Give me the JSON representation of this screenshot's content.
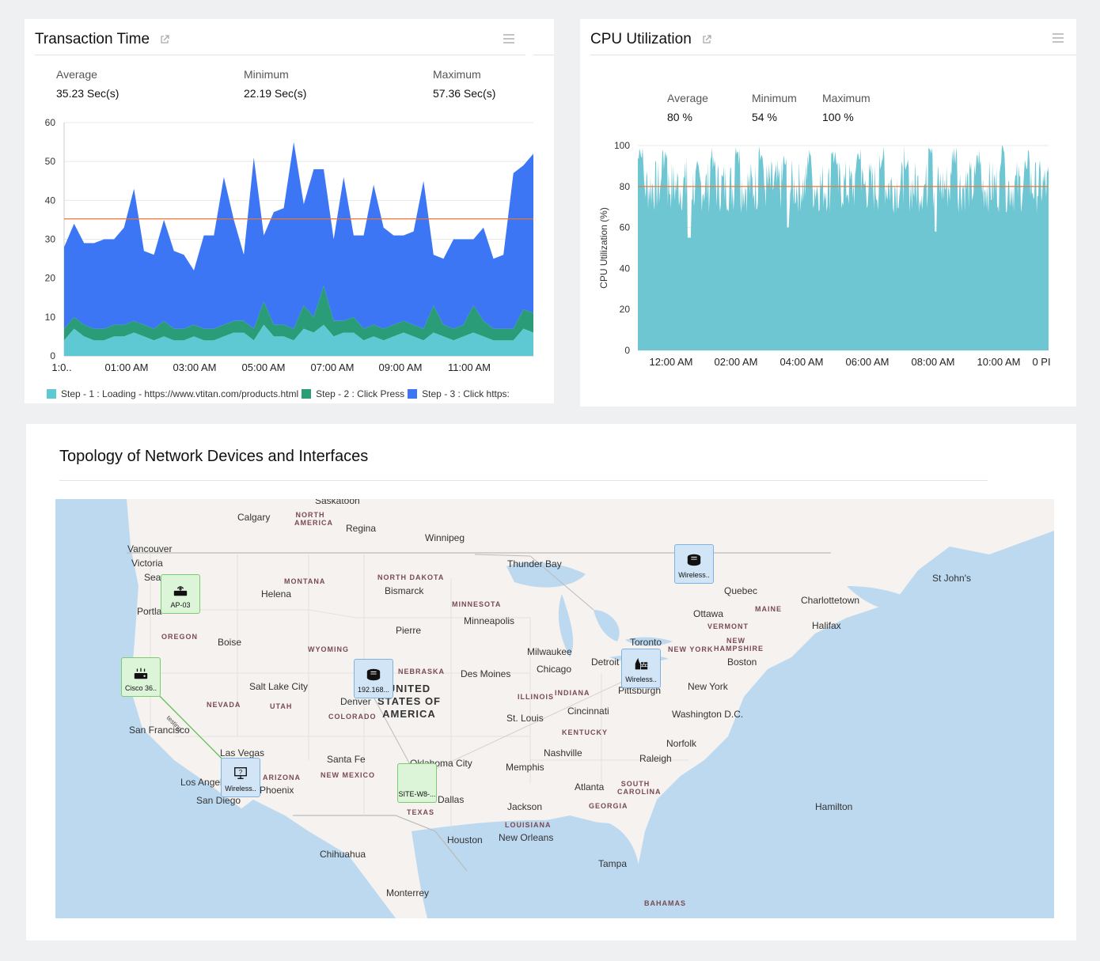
{
  "transaction": {
    "title": "Transaction Time",
    "stats": [
      {
        "label": "Average",
        "value": "35.23 Sec(s)"
      },
      {
        "label": "Minimum",
        "value": "22.19 Sec(s)"
      },
      {
        "label": "Maximum",
        "value": "57.36 Sec(s)"
      }
    ],
    "legend": [
      {
        "label": "Step - 1 : Loading - https://www.vtitan.com/products.html",
        "color": "#5ec8d3"
      },
      {
        "label": "Step - 2 : Click Press",
        "color": "#2a9d78"
      },
      {
        "label": "Step - 3 : Click https:",
        "color": "#3d76f5"
      }
    ]
  },
  "cpu": {
    "title": "CPU Utilization",
    "stats": [
      {
        "label": "Average",
        "value": "80 %"
      },
      {
        "label": "Minimum",
        "value": "54 %"
      },
      {
        "label": "Maximum",
        "value": "100 %"
      }
    ]
  },
  "chart_data": [
    {
      "type": "area",
      "stacked": true,
      "ylim": [
        0,
        60
      ],
      "yticks": [
        "0",
        "10",
        "20",
        "30",
        "40",
        "50",
        "60"
      ],
      "xticks": [
        "1:0..",
        "01:00 AM",
        "03:00 AM",
        "05:00 AM",
        "07:00 AM",
        "09:00 AM",
        "11:00 AM"
      ],
      "reference_line": 35.23,
      "reference_color": "#f07030",
      "series": [
        {
          "name": "Step - 1 : Loading - https://www.vtitan.com/products.html",
          "color": "#5ec8d3",
          "values": [
            4,
            7,
            5,
            4,
            4,
            5,
            5,
            6,
            5,
            4,
            5,
            4,
            4,
            5,
            4,
            4,
            5,
            6,
            6,
            4,
            8,
            5,
            5,
            4,
            7,
            6,
            8,
            5,
            6,
            6,
            4,
            5,
            4,
            5,
            6,
            5,
            4,
            6,
            5,
            4,
            5,
            6,
            5,
            4,
            4,
            4,
            7,
            6
          ]
        },
        {
          "name": "Step - 2 : Click Press",
          "color": "#2a9d78",
          "values": [
            3,
            3,
            3,
            3,
            3,
            3,
            3,
            3,
            3,
            3,
            4,
            3,
            3,
            3,
            3,
            3,
            3,
            3,
            3,
            3,
            6,
            3,
            3,
            3,
            6,
            4,
            10,
            4,
            3,
            4,
            3,
            3,
            3,
            3,
            3,
            3,
            3,
            7,
            3,
            3,
            3,
            7,
            4,
            3,
            3,
            3,
            5,
            5
          ]
        },
        {
          "name": "Step - 3 : Click https:",
          "color": "#3d76f5",
          "values": [
            21,
            24,
            21,
            22,
            23,
            22,
            25,
            34,
            19,
            19,
            26,
            20,
            19,
            14,
            24,
            24,
            38,
            26,
            17,
            44,
            17,
            29,
            30,
            48,
            26,
            38,
            30,
            21,
            37,
            21,
            24,
            36,
            26,
            23,
            22,
            24,
            38,
            13,
            17,
            23,
            22,
            17,
            24,
            18,
            19,
            40,
            37,
            41
          ]
        }
      ]
    },
    {
      "type": "area",
      "ylabel": "CPU Utilization (%)",
      "ylim": [
        0,
        100
      ],
      "yticks": [
        "0",
        "20",
        "40",
        "60",
        "80",
        "100"
      ],
      "xticks": [
        "12:00 AM",
        "02:00 AM",
        "04:00 AM",
        "06:00 AM",
        "08:00 AM",
        "10:00 AM",
        "0 PI"
      ],
      "reference_line": 80,
      "reference_color": "#f07030",
      "series": [
        {
          "name": "CPU Utilization (%)",
          "color": "#6ec6d2",
          "peaks": 17,
          "peak_value": 100,
          "base_value": 67,
          "dip_value": 55
        }
      ]
    }
  ],
  "topology": {
    "title": "Topology of Network Devices and Interfaces",
    "devices": [
      {
        "label": "AP-03",
        "icon": "access-point-icon"
      },
      {
        "label": "Cisco 36..",
        "icon": "router-icon"
      },
      {
        "label": "Wireless..",
        "icon": "monitor-unknown-icon"
      },
      {
        "label": "192.168...",
        "icon": "switch-icon"
      },
      {
        "label": "SITE-W8-...",
        "icon": "site-icon"
      },
      {
        "label": "Wireless..",
        "icon": "switch-icon"
      },
      {
        "label": "Wireless..",
        "icon": "firewall-icon"
      }
    ],
    "link_label": "testing",
    "cities": [
      "Calgary",
      "Regina",
      "Winnipeg",
      "Vancouver",
      "Victoria",
      "Sea",
      "Portla",
      "Helena",
      "Bismarck",
      "Thunder Bay",
      "Quebec",
      "St John's",
      "Ottawa",
      "Charlottetown",
      "Halifax",
      "Boise",
      "Minneapolis",
      "Pierre",
      "Milwaukee",
      "Toronto",
      "Boston",
      "Salt Lake City",
      "Des Moines",
      "Chicago",
      "Detroit",
      "Pittsburgh",
      "New York",
      "Denver",
      "St. Louis",
      "Cincinnati",
      "Washington D.C.",
      "San Francisco",
      "Las Vegas",
      "Santa Fe",
      "Oklahoma City",
      "Nashville",
      "Memphis",
      "Raleigh",
      "Norfolk",
      "Los Angeles",
      "San Diego",
      "Phoenix",
      "Dallas",
      "Atlanta",
      "Jackson",
      "Houston",
      "New Orleans",
      "Hamilton",
      "Chihuahua",
      "Tampa",
      "Monterrey",
      "Saskatoon"
    ],
    "states": [
      "NORTH AMERICA",
      "MONTANA",
      "NORTH DAKOTA",
      "MINNESOTA",
      "OREGON",
      "WYOMING",
      "NEBRASKA",
      "NEVADA",
      "UTAH",
      "COLORADO",
      "ILLINOIS",
      "INDIANA",
      "KENTUCKY",
      "ARIZONA",
      "NEW MEXICO",
      "TEXAS",
      "LOUISIANA",
      "SOUTH CAROLINA",
      "GEORGIA",
      "MAINE",
      "VERMONT",
      "NEW HAMPSHIRE",
      "NEW YORK",
      "BAHAMAS"
    ],
    "country": "UNITED STATES OF AMERICA"
  }
}
